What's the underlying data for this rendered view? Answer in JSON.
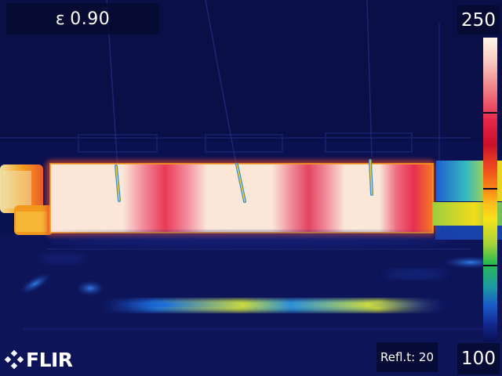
{
  "overlay": {
    "emissivity_symbol": "ε",
    "emissivity_value": "0.90",
    "scale_max": "250",
    "scale_min": "100",
    "reflected_temp": "Refl.t: 20"
  },
  "brand": {
    "logo_text": "FLIR",
    "logo_icon": "flir-diamond-icon"
  },
  "palette": {
    "background": "#0a1050",
    "hot_white": "#fbe8da",
    "hot_red": "#e8304f",
    "accent_orange": "#f59a1c",
    "cool_blue": "#1d3fb0"
  }
}
